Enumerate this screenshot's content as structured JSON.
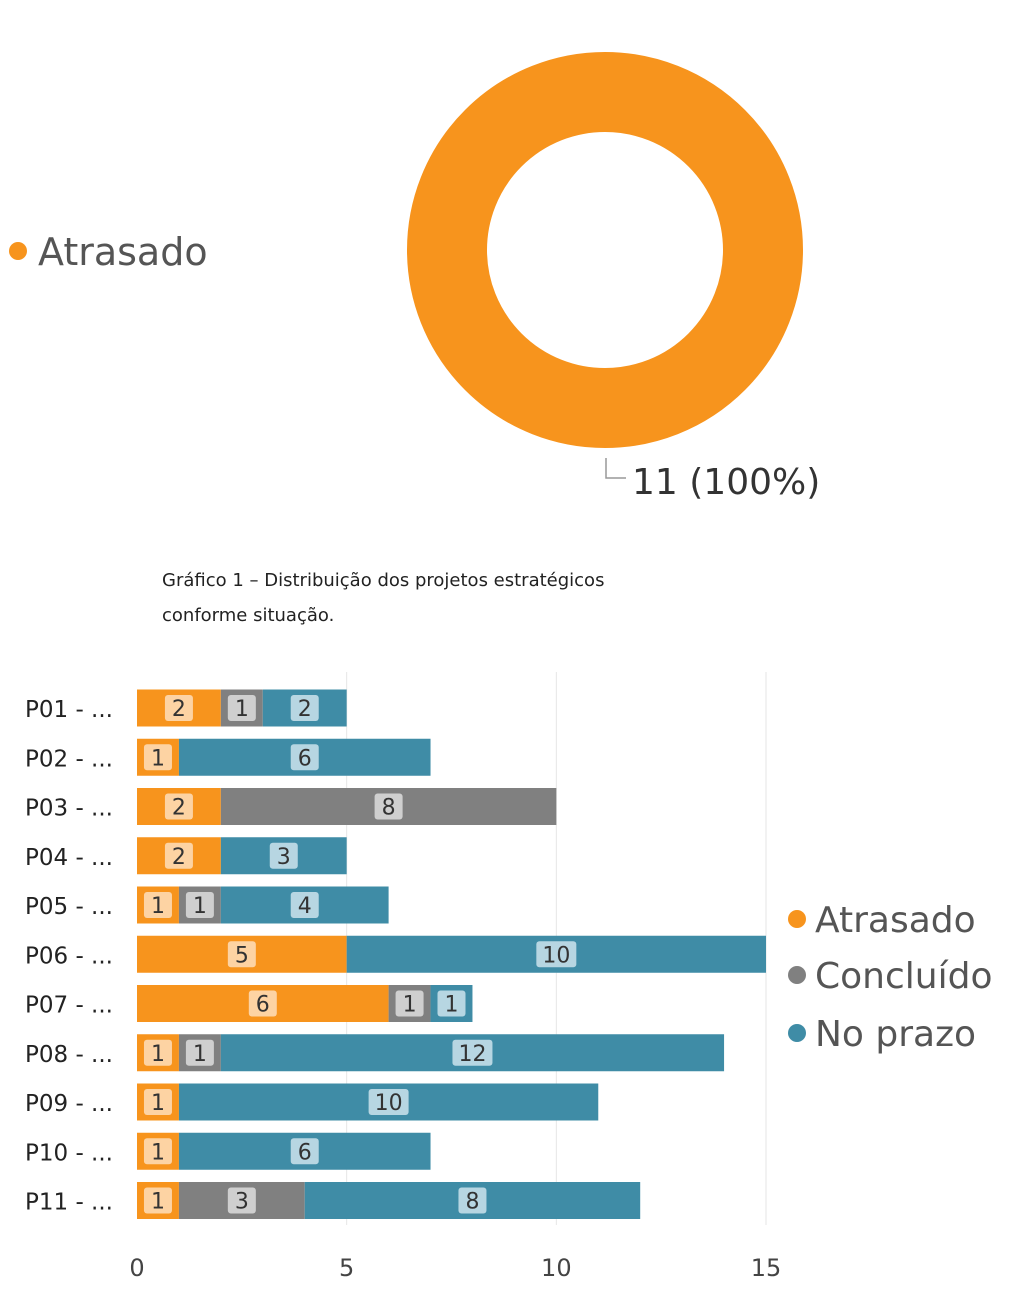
{
  "colors": {
    "Atrasado": "#F7941D",
    "Concluído": "#808080",
    "No prazo": "#3F8CA6",
    "label_bg": {
      "Atrasado": "#FDD3A3",
      "Concluído": "#CFCFCF",
      "No prazo": "#B7D6E2"
    }
  },
  "caption": {
    "line1": "Gráfico 1 – Distribuição dos projetos estratégicos",
    "line2": "conforme situação."
  },
  "chart_data": [
    {
      "type": "pie",
      "variant": "donut",
      "slices": [
        {
          "label": "Atrasado",
          "value": 11,
          "percent": 100
        }
      ],
      "data_label": "11 (100%)",
      "legend": [
        "Atrasado"
      ],
      "legend_placement": "left"
    },
    {
      "type": "bar",
      "orientation": "horizontal",
      "stacked": true,
      "categories": [
        "P01 - ...",
        "P02 - ...",
        "P03 - ...",
        "P04 - ...",
        "P05 - ...",
        "P06 - ...",
        "P07 - ...",
        "P08 - ...",
        "P09 - ...",
        "P10 - ...",
        "P11 - ..."
      ],
      "series": [
        {
          "name": "Atrasado",
          "values": [
            2,
            1,
            2,
            2,
            1,
            5,
            6,
            1,
            1,
            1,
            1
          ]
        },
        {
          "name": "Concluído",
          "values": [
            1,
            0,
            8,
            0,
            1,
            0,
            1,
            1,
            0,
            0,
            3
          ]
        },
        {
          "name": "No prazo",
          "values": [
            2,
            6,
            0,
            3,
            4,
            10,
            1,
            12,
            10,
            6,
            8
          ]
        }
      ],
      "xlim": [
        0,
        15
      ],
      "xticks": [
        "0",
        "5",
        "10",
        "15"
      ],
      "grid": true,
      "legend": [
        "Atrasado",
        "Concluído",
        "No prazo"
      ],
      "legend_placement": "right"
    }
  ]
}
